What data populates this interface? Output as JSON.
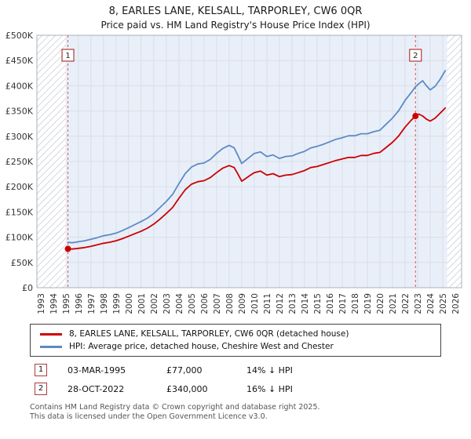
{
  "header": {
    "title": "8, EARLES LANE, KELSALL, TARPORLEY, CW6 0QR",
    "subtitle": "Price paid vs. HM Land Registry's House Price Index (HPI)"
  },
  "chart_data": {
    "type": "line",
    "title": "8, EARLES LANE, KELSALL, TARPORLEY, CW6 0QR",
    "subtitle": "Price paid vs. HM Land Registry's House Price Index (HPI)",
    "x_range": [
      1992.7,
      2026.5
    ],
    "y_range": [
      0,
      500000
    ],
    "shaded_region": [
      1995.0,
      2025.35
    ],
    "grid": true,
    "background_shade": "#e9eff9",
    "y_ticks": [
      {
        "v": 0,
        "label": "£0"
      },
      {
        "v": 50000,
        "label": "£50K"
      },
      {
        "v": 100000,
        "label": "£100K"
      },
      {
        "v": 150000,
        "label": "£150K"
      },
      {
        "v": 200000,
        "label": "£200K"
      },
      {
        "v": 250000,
        "label": "£250K"
      },
      {
        "v": 300000,
        "label": "£300K"
      },
      {
        "v": 350000,
        "label": "£350K"
      },
      {
        "v": 400000,
        "label": "£400K"
      },
      {
        "v": 450000,
        "label": "£450K"
      },
      {
        "v": 500000,
        "label": "£500K"
      }
    ],
    "x_ticks": [
      1993,
      1994,
      1995,
      1996,
      1997,
      1998,
      1999,
      2000,
      2001,
      2002,
      2003,
      2004,
      2005,
      2006,
      2007,
      2008,
      2009,
      2010,
      2011,
      2012,
      2013,
      2014,
      2015,
      2016,
      2017,
      2018,
      2019,
      2020,
      2021,
      2022,
      2023,
      2024,
      2025,
      2026
    ],
    "series": [
      {
        "name": "8, EARLES LANE, KELSALL, TARPORLEY, CW6 0QR (detached house)",
        "color": "#cc0000",
        "points": [
          [
            1995.17,
            77000
          ],
          [
            1995.5,
            76500
          ],
          [
            1996,
            78000
          ],
          [
            1996.5,
            79500
          ],
          [
            1997,
            82000
          ],
          [
            1997.5,
            85000
          ],
          [
            1998,
            88000
          ],
          [
            1998.5,
            90000
          ],
          [
            1999,
            93000
          ],
          [
            1999.5,
            97000
          ],
          [
            2000,
            102000
          ],
          [
            2000.5,
            107000
          ],
          [
            2001,
            112000
          ],
          [
            2001.5,
            118000
          ],
          [
            2002,
            126000
          ],
          [
            2002.5,
            136000
          ],
          [
            2003,
            147000
          ],
          [
            2003.5,
            159000
          ],
          [
            2004,
            177000
          ],
          [
            2004.5,
            194000
          ],
          [
            2005,
            205000
          ],
          [
            2005.5,
            210000
          ],
          [
            2006,
            212000
          ],
          [
            2006.5,
            218000
          ],
          [
            2007,
            228000
          ],
          [
            2007.5,
            237000
          ],
          [
            2008,
            242000
          ],
          [
            2008.4,
            238000
          ],
          [
            2008.7,
            225000
          ],
          [
            2009,
            211000
          ],
          [
            2009.3,
            216000
          ],
          [
            2009.7,
            223000
          ],
          [
            2010,
            228000
          ],
          [
            2010.5,
            231000
          ],
          [
            2011,
            223000
          ],
          [
            2011.5,
            226000
          ],
          [
            2012,
            220000
          ],
          [
            2012.5,
            223000
          ],
          [
            2013,
            224000
          ],
          [
            2013.5,
            228000
          ],
          [
            2014,
            232000
          ],
          [
            2014.5,
            238000
          ],
          [
            2015,
            240000
          ],
          [
            2015.5,
            244000
          ],
          [
            2016,
            248000
          ],
          [
            2016.5,
            252000
          ],
          [
            2017,
            255000
          ],
          [
            2017.5,
            258000
          ],
          [
            2018,
            258000
          ],
          [
            2018.5,
            262000
          ],
          [
            2019,
            262000
          ],
          [
            2019.5,
            266000
          ],
          [
            2020,
            268000
          ],
          [
            2020.5,
            278000
          ],
          [
            2021,
            288000
          ],
          [
            2021.5,
            301000
          ],
          [
            2022,
            318000
          ],
          [
            2022.5,
            332000
          ],
          [
            2022.83,
            340000
          ],
          [
            2023.1,
            344000
          ],
          [
            2023.4,
            340000
          ],
          [
            2023.7,
            334000
          ],
          [
            2024,
            330000
          ],
          [
            2024.4,
            336000
          ],
          [
            2024.8,
            346000
          ],
          [
            2025.2,
            356000
          ]
        ]
      },
      {
        "name": "HPI: Average price, detached house, Cheshire West and Chester",
        "color": "#5c8bc4",
        "points": [
          [
            1995.17,
            90000
          ],
          [
            1995.5,
            89000
          ],
          [
            1996,
            91000
          ],
          [
            1996.5,
            93000
          ],
          [
            1997,
            96000
          ],
          [
            1997.5,
            99000
          ],
          [
            1998,
            103000
          ],
          [
            1998.5,
            105000
          ],
          [
            1999,
            108000
          ],
          [
            1999.5,
            113000
          ],
          [
            2000,
            119000
          ],
          [
            2000.5,
            125000
          ],
          [
            2001,
            131000
          ],
          [
            2001.5,
            138000
          ],
          [
            2002,
            147000
          ],
          [
            2002.5,
            159000
          ],
          [
            2003,
            171000
          ],
          [
            2003.5,
            185000
          ],
          [
            2004,
            206000
          ],
          [
            2004.5,
            226000
          ],
          [
            2005,
            239000
          ],
          [
            2005.5,
            245000
          ],
          [
            2006,
            247000
          ],
          [
            2006.5,
            254000
          ],
          [
            2007,
            266000
          ],
          [
            2007.5,
            276000
          ],
          [
            2008,
            282000
          ],
          [
            2008.4,
            277000
          ],
          [
            2008.7,
            262000
          ],
          [
            2009,
            246000
          ],
          [
            2009.3,
            252000
          ],
          [
            2009.7,
            260000
          ],
          [
            2010,
            266000
          ],
          [
            2010.5,
            269000
          ],
          [
            2011,
            260000
          ],
          [
            2011.5,
            263000
          ],
          [
            2012,
            256000
          ],
          [
            2012.5,
            260000
          ],
          [
            2013,
            261000
          ],
          [
            2013.5,
            266000
          ],
          [
            2014,
            270000
          ],
          [
            2014.5,
            277000
          ],
          [
            2015,
            280000
          ],
          [
            2015.5,
            284000
          ],
          [
            2016,
            289000
          ],
          [
            2016.5,
            294000
          ],
          [
            2017,
            297000
          ],
          [
            2017.5,
            301000
          ],
          [
            2018,
            301000
          ],
          [
            2018.5,
            305000
          ],
          [
            2019,
            305000
          ],
          [
            2019.5,
            309000
          ],
          [
            2020,
            312000
          ],
          [
            2020.5,
            324000
          ],
          [
            2021,
            336000
          ],
          [
            2021.5,
            351000
          ],
          [
            2022,
            371000
          ],
          [
            2022.5,
            387000
          ],
          [
            2022.83,
            398000
          ],
          [
            2023.1,
            404000
          ],
          [
            2023.4,
            410000
          ],
          [
            2023.7,
            400000
          ],
          [
            2024,
            392000
          ],
          [
            2024.4,
            399000
          ],
          [
            2024.8,
            413000
          ],
          [
            2025.2,
            430000
          ]
        ]
      }
    ],
    "markers": [
      {
        "label": "1",
        "x": 1995.17,
        "y": 77000
      },
      {
        "label": "2",
        "x": 2022.83,
        "y": 340000
      }
    ],
    "marker_line_color": "#e05555",
    "legend_position": "bottom"
  },
  "legend": {
    "items": [
      {
        "label": "8, EARLES LANE, KELSALL, TARPORLEY, CW6 0QR (detached house)",
        "color": "#cc0000"
      },
      {
        "label": "HPI: Average price, detached house, Cheshire West and Chester",
        "color": "#5c8bc4"
      }
    ]
  },
  "annotations": [
    {
      "num": "1",
      "date": "03-MAR-1995",
      "price": "£77,000",
      "hpi": "14% ↓ HPI"
    },
    {
      "num": "2",
      "date": "28-OCT-2022",
      "price": "£340,000",
      "hpi": "16% ↓ HPI"
    }
  ],
  "footer": {
    "line1": "Contains HM Land Registry data © Crown copyright and database right 2025.",
    "line2": "This data is licensed under the Open Government Licence v3.0."
  }
}
